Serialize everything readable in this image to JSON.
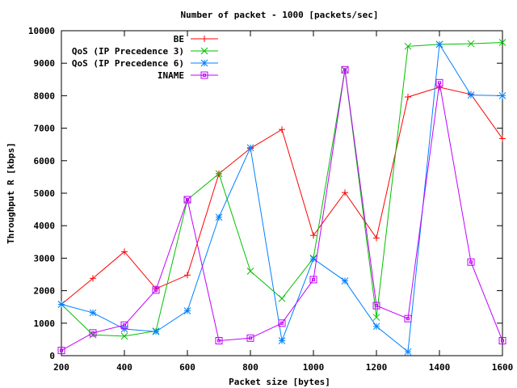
{
  "chart_data": {
    "type": "line",
    "title": "Number of packet - 1000 [packets/sec]",
    "xlabel": "Packet size [bytes]",
    "ylabel": "Throughput R [kbps]",
    "xlim": [
      200,
      1600
    ],
    "ylim": [
      0,
      10000
    ],
    "xticks": [
      200,
      400,
      600,
      800,
      1000,
      1200,
      1400,
      1600
    ],
    "yticks": [
      0,
      1000,
      2000,
      3000,
      4000,
      5000,
      6000,
      7000,
      8000,
      9000,
      10000
    ],
    "grid": false,
    "legend_position": "top-right",
    "x": [
      200,
      300,
      400,
      500,
      600,
      700,
      800,
      900,
      1000,
      1100,
      1200,
      1300,
      1400,
      1500,
      1600
    ],
    "series": [
      {
        "name": "BE",
        "color": "#ff0000",
        "marker": "plus",
        "values": [
          1580,
          2380,
          3200,
          2060,
          2480,
          5600,
          6380,
          6960,
          3700,
          5020,
          3620,
          7960,
          8260,
          8040,
          6680
        ]
      },
      {
        "name": "QoS (IP Precedence 3)",
        "color": "#00c000",
        "marker": "cross",
        "values": [
          1580,
          640,
          600,
          760,
          4800,
          5600,
          2600,
          1760,
          3000,
          8800,
          1180,
          9520,
          9580,
          9600,
          9640
        ]
      },
      {
        "name": "QoS (IP Precedence 6)",
        "color": "#0080ff",
        "marker": "star",
        "values": [
          1580,
          1320,
          820,
          740,
          1380,
          4260,
          6400,
          460,
          2980,
          2300,
          900,
          120,
          9580,
          8020,
          8000
        ]
      },
      {
        "name": "INAME",
        "color": "#c000ff",
        "marker": "box",
        "values": [
          160,
          700,
          940,
          2020,
          4800,
          460,
          540,
          1000,
          2340,
          8800,
          1540,
          1140,
          8400,
          2880,
          460
        ]
      }
    ]
  }
}
